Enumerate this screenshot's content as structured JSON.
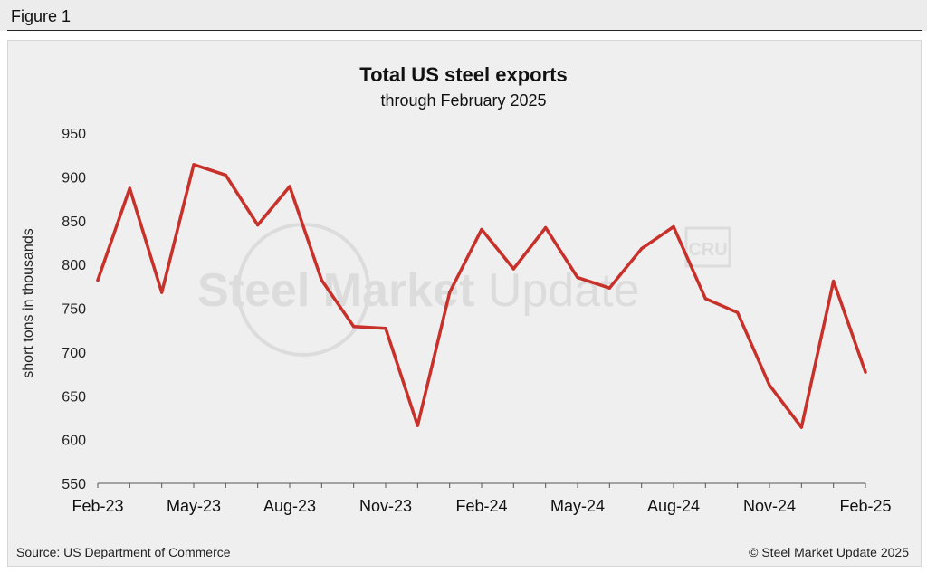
{
  "figure_label": "Figure 1",
  "footer": {
    "source": "Source: US Department of Commerce",
    "copyright": "© Steel Market Update 2025"
  },
  "watermark": {
    "text_bold": "Steel Market",
    "text_light": " Update",
    "badge": "CRU"
  },
  "colors": {
    "line": "#c8302a",
    "panel": "#efefef",
    "watermark": "#dcdcdc"
  },
  "chart_data": {
    "type": "line",
    "title": "Total US steel exports",
    "subtitle": "through February 2025",
    "xlabel": "",
    "ylabel": "short tons in thousands",
    "ylim": [
      550,
      950
    ],
    "yticks": [
      550,
      600,
      650,
      700,
      750,
      800,
      850,
      900,
      950
    ],
    "grid": false,
    "legend": "none",
    "categories": [
      "Feb-23",
      "Mar-23",
      "Apr-23",
      "May-23",
      "Jun-23",
      "Jul-23",
      "Aug-23",
      "Sep-23",
      "Oct-23",
      "Nov-23",
      "Dec-23",
      "Jan-24",
      "Feb-24",
      "Mar-24",
      "Apr-24",
      "May-24",
      "Jun-24",
      "Jul-24",
      "Aug-24",
      "Sep-24",
      "Oct-24",
      "Nov-24",
      "Dec-24",
      "Jan-25",
      "Feb-25"
    ],
    "xtick_labels": [
      "Feb-23",
      "May-23",
      "Aug-23",
      "Nov-23",
      "Feb-24",
      "May-24",
      "Aug-24",
      "Nov-24",
      "Feb-25"
    ],
    "series": [
      {
        "values": [
          782,
          887,
          768,
          914,
          902,
          845,
          889,
          782,
          729,
          727,
          616,
          768,
          840,
          795,
          842,
          785,
          773,
          818,
          843,
          761,
          745,
          662,
          614,
          781,
          677
        ]
      }
    ]
  }
}
